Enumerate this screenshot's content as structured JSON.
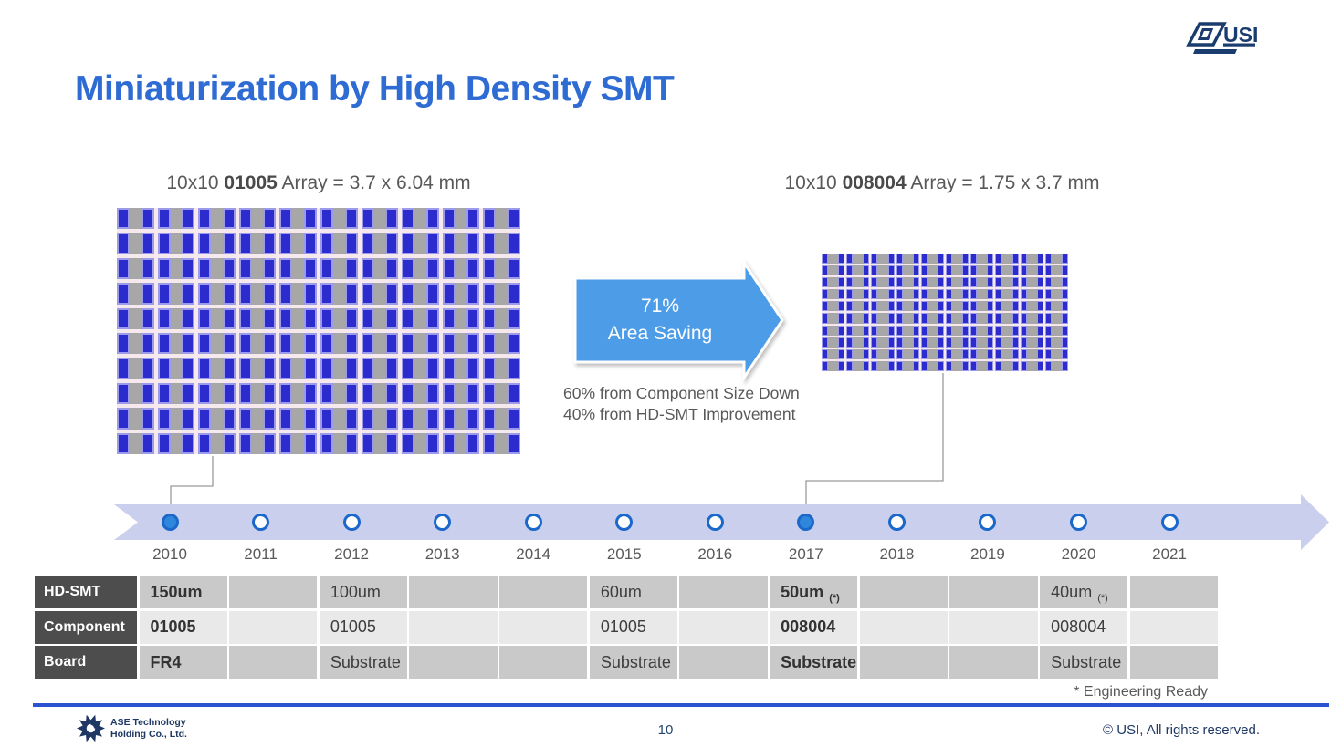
{
  "slide": {
    "title": "Miniaturization by High Density SMT",
    "page_number": "10",
    "copyright": "© USI, All rights reserved.",
    "footnote": "* Engineering Ready"
  },
  "logos": {
    "usi_text": "USI",
    "ase_line1": "ASE Technology",
    "ase_line2": "Holding Co., Ltd."
  },
  "left_array": {
    "label_prefix": "10x10 ",
    "label_bold": "01005",
    "label_suffix": " Array = 3.7 x  6.04 mm",
    "rows": 10,
    "cols": 10
  },
  "right_array": {
    "label_prefix": "10x10 ",
    "label_bold": "008004",
    "label_suffix": " Array = 1.75 x  3.7 mm",
    "rows": 10,
    "cols": 10
  },
  "arrow": {
    "line1": "71%",
    "line2": "Area Saving"
  },
  "notes": {
    "line1": "60% from Component Size Down",
    "line2": "40% from HD-SMT Improvement"
  },
  "timeline": {
    "years": [
      {
        "label": "2010",
        "filled": true
      },
      {
        "label": "2011",
        "filled": false
      },
      {
        "label": "2012",
        "filled": false
      },
      {
        "label": "2013",
        "filled": false
      },
      {
        "label": "2014",
        "filled": false
      },
      {
        "label": "2015",
        "filled": false
      },
      {
        "label": "2016",
        "filled": false
      },
      {
        "label": "2017",
        "filled": true
      },
      {
        "label": "2018",
        "filled": false
      },
      {
        "label": "2019",
        "filled": false
      },
      {
        "label": "2020",
        "filled": false
      },
      {
        "label": "2021",
        "filled": false
      }
    ]
  },
  "table": {
    "row_headers": [
      "HD-SMT",
      "Component",
      "Board"
    ],
    "columns": [
      {
        "year": "2010",
        "hdsmt": "150um",
        "component": "01005",
        "board": "FR4",
        "bold": true
      },
      {
        "year": "2011"
      },
      {
        "year": "2012",
        "hdsmt": "100um",
        "component": "01005",
        "board": "Substrate"
      },
      {
        "year": "2013"
      },
      {
        "year": "2014"
      },
      {
        "year": "2015",
        "hdsmt": "60um",
        "component": "01005",
        "board": "Substrate"
      },
      {
        "year": "2016"
      },
      {
        "year": "2017",
        "hdsmt": "50um",
        "hdsmt_note": "(*)",
        "component": "008004",
        "board": "Substrate",
        "bold": true
      },
      {
        "year": "2018"
      },
      {
        "year": "2019"
      },
      {
        "year": "2020",
        "hdsmt": "40um",
        "hdsmt_note": "(*)",
        "component": "008004",
        "board": "Substrate"
      },
      {
        "year": "2021"
      }
    ]
  },
  "colors": {
    "title_blue": "#2E6BD3",
    "arrow_blue": "#4D9CE8",
    "timeline_band": "#C9CFEC",
    "dot_ring_blue": "#1C67CA",
    "dot_fill_blue": "#2F86DB",
    "pad_blue": "#2B2BCE",
    "pad_border": "#9B9BEA",
    "component_body_gray": "#A7A7A7",
    "table_dark_cell": "#C9C9C9",
    "table_light_cell": "#E9E9E9",
    "table_header_cell": "#4D4D4D",
    "divider_blue": "#2B53D0",
    "navy": "#1F3864",
    "text_gray": "#595959"
  }
}
